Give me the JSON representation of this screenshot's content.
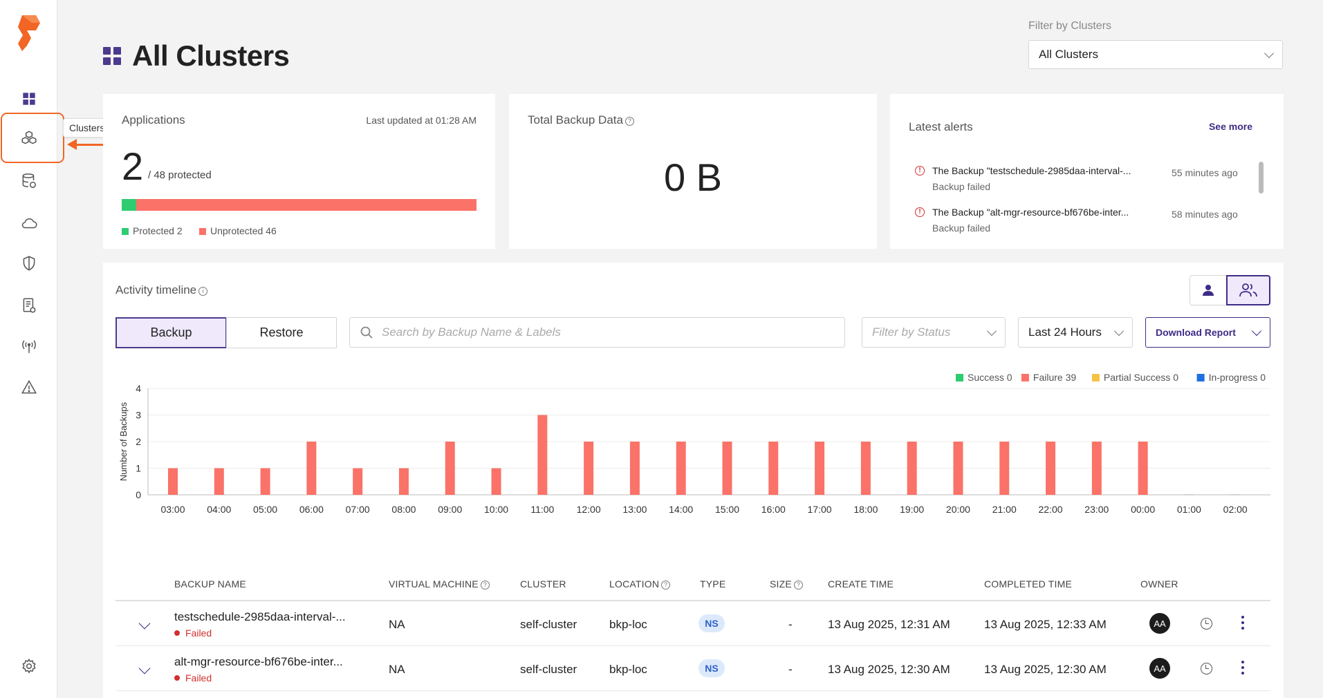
{
  "sidebar": {
    "items": [
      {
        "icon": "dashboard-icon"
      },
      {
        "icon": "clusters-icon",
        "tooltip": "Clusters"
      },
      {
        "icon": "database-icon"
      },
      {
        "icon": "cloud-icon"
      },
      {
        "icon": "shield-icon"
      },
      {
        "icon": "report-icon"
      },
      {
        "icon": "antenna-icon"
      },
      {
        "icon": "alert-icon"
      }
    ],
    "settings_icon": "gear-icon",
    "tooltip": "Clusters",
    "callout_number": "1",
    "accent": "#f26524"
  },
  "header": {
    "title": "All Clusters",
    "filter_label": "Filter by Clusters",
    "filter_value": "All Clusters"
  },
  "applications": {
    "title": "Applications",
    "last_updated": "Last updated at 01:28 AM",
    "protected_count": "2",
    "total_text": "/ 48 protected",
    "protected_fraction": 0.0417,
    "legend_protected": "Protected 2",
    "legend_unprotected": "Unprotected 46",
    "protected_color": "#2ecc71",
    "unprotected_color": "#fa7268"
  },
  "backup_data": {
    "title": "Total Backup Data",
    "value": "0 B"
  },
  "alerts": {
    "title": "Latest alerts",
    "see_more": "See more",
    "items": [
      {
        "title": "The Backup \"testschedule-2985daa-interval-...",
        "status": "Backup failed",
        "time": "55 minutes ago"
      },
      {
        "title": "The Backup \"alt-mgr-resource-bf676be-inter...",
        "status": "Backup failed",
        "time": "58 minutes ago"
      }
    ]
  },
  "activity": {
    "title": "Activity timeline",
    "tabs": [
      "Backup",
      "Restore"
    ],
    "search_placeholder": "Search by Backup Name & Labels",
    "status_placeholder": "Filter by Status",
    "range": "Last 24 Hours",
    "download": "Download Report"
  },
  "chart_data": {
    "type": "bar",
    "categories": [
      "03:00",
      "04:00",
      "05:00",
      "06:00",
      "07:00",
      "08:00",
      "09:00",
      "10:00",
      "11:00",
      "12:00",
      "13:00",
      "14:00",
      "15:00",
      "16:00",
      "17:00",
      "18:00",
      "19:00",
      "20:00",
      "21:00",
      "22:00",
      "23:00",
      "00:00",
      "01:00",
      "02:00"
    ],
    "series": [
      {
        "name": "Failure 39",
        "color": "#fa7268",
        "values": [
          1,
          1,
          1,
          2,
          1,
          1,
          2,
          1,
          3,
          2,
          2,
          2,
          2,
          2,
          2,
          2,
          2,
          2,
          2,
          2,
          2,
          2,
          0,
          0
        ]
      }
    ],
    "legend": [
      {
        "label": "Success 0",
        "color": "#2ecc71"
      },
      {
        "label": "Failure 39",
        "color": "#fa7268"
      },
      {
        "label": "Partial Success 0",
        "color": "#f6c244"
      },
      {
        "label": "In-progress 0",
        "color": "#1e6fe0"
      }
    ],
    "ylabel": "Number of Backups",
    "ylim": [
      0,
      4
    ],
    "yticks": [
      "0",
      "1",
      "2",
      "3",
      "4"
    ],
    "grid": true,
    "legend_position": "top-right"
  },
  "table": {
    "headers": {
      "name": "BACKUP NAME",
      "vm": "VIRTUAL MACHINE",
      "cluster": "CLUSTER",
      "location": "LOCATION",
      "type": "TYPE",
      "size": "SIZE",
      "create": "CREATE TIME",
      "completed": "COMPLETED TIME",
      "owner": "OWNER"
    },
    "rows": [
      {
        "name": "testschedule-2985daa-interval-...",
        "status": "Failed",
        "vm": "NA",
        "cluster": "self-cluster",
        "location": "bkp-loc",
        "type": "NS",
        "size": "-",
        "create": "13 Aug 2025, 12:31 AM",
        "completed": "13 Aug 2025, 12:33 AM",
        "owner": "AA"
      },
      {
        "name": "alt-mgr-resource-bf676be-inter...",
        "status": "Failed",
        "vm": "NA",
        "cluster": "self-cluster",
        "location": "bkp-loc",
        "type": "NS",
        "size": "-",
        "create": "13 Aug 2025, 12:30 AM",
        "completed": "13 Aug 2025, 12:30 AM",
        "owner": "AA"
      }
    ]
  }
}
